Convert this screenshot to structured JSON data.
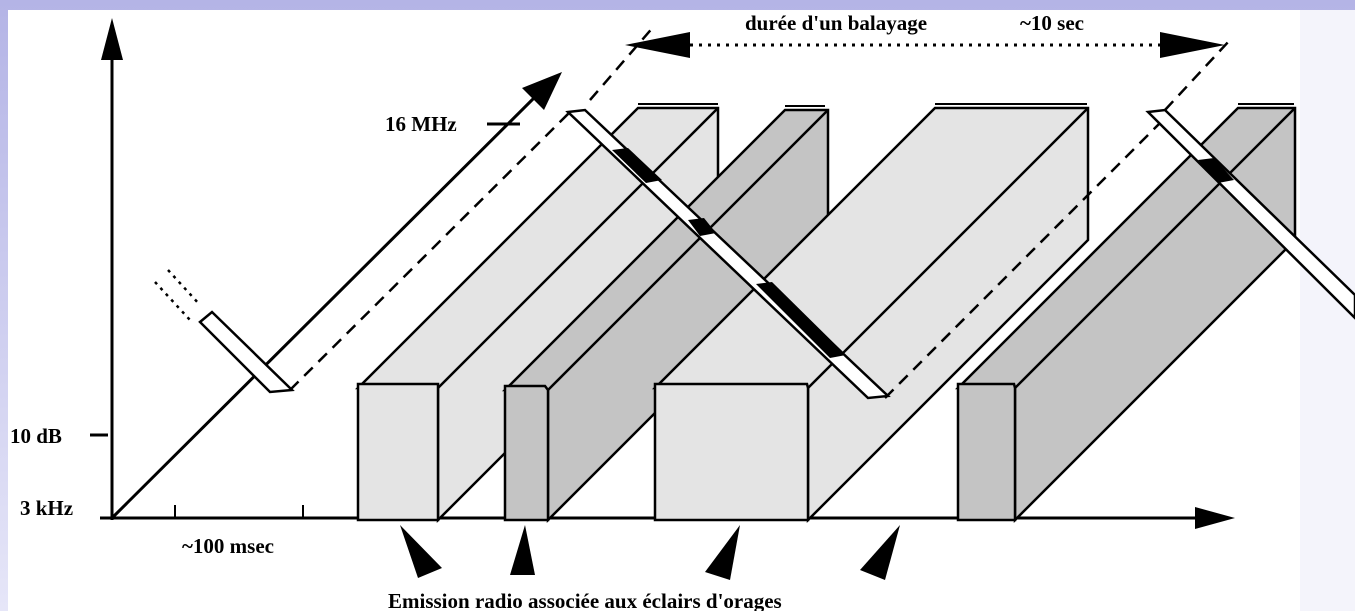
{
  "labels": {
    "sweep_duration": "durée d'un balayage",
    "sweep_time": "~10 sec",
    "freq_max": "16 MHz",
    "amplitude": "10 dB",
    "freq_min": "3 kHz",
    "time_scale": "~100 msec",
    "caption": "Emission radio associée aux éclairs d'orages"
  }
}
